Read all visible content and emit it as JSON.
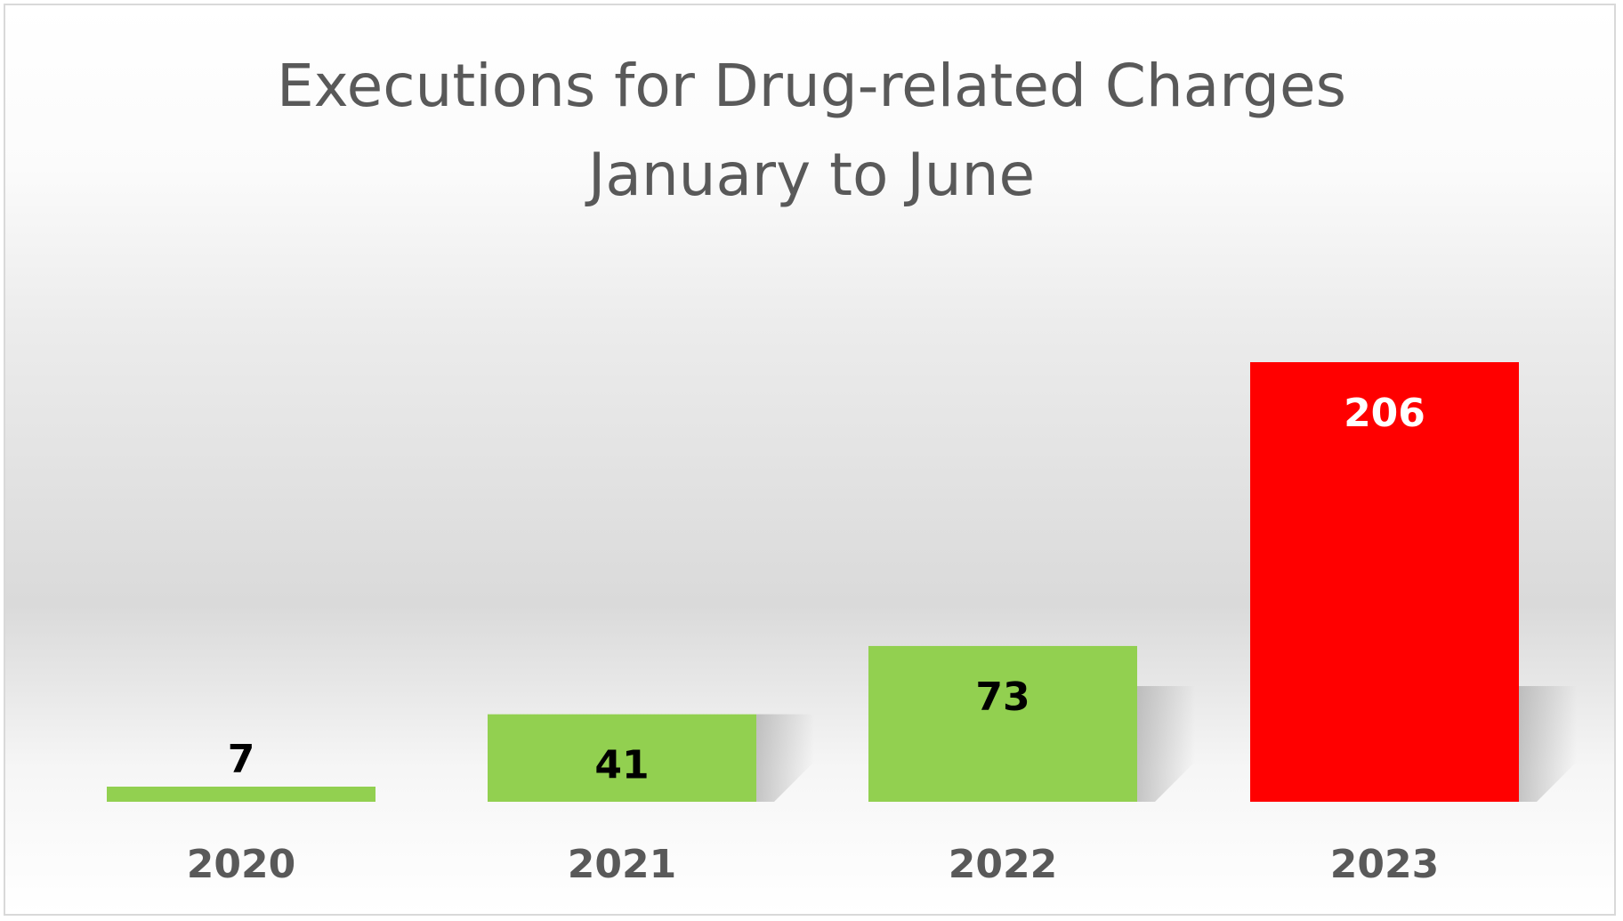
{
  "chart_data": {
    "type": "bar",
    "title": "Executions for Drug-related Charges",
    "subtitle": "January to June",
    "categories": [
      "2020",
      "2021",
      "2022",
      "2023"
    ],
    "values": [
      7,
      41,
      73,
      206
    ],
    "bar_colors": [
      "#92d050",
      "#92d050",
      "#92d050",
      "#ff0000"
    ],
    "label_colors": [
      "#000000",
      "#000000",
      "#000000",
      "#ffffff"
    ],
    "ylim": [
      0,
      206
    ],
    "grid": false,
    "legend": "none",
    "xlabel": "",
    "ylabel": ""
  }
}
